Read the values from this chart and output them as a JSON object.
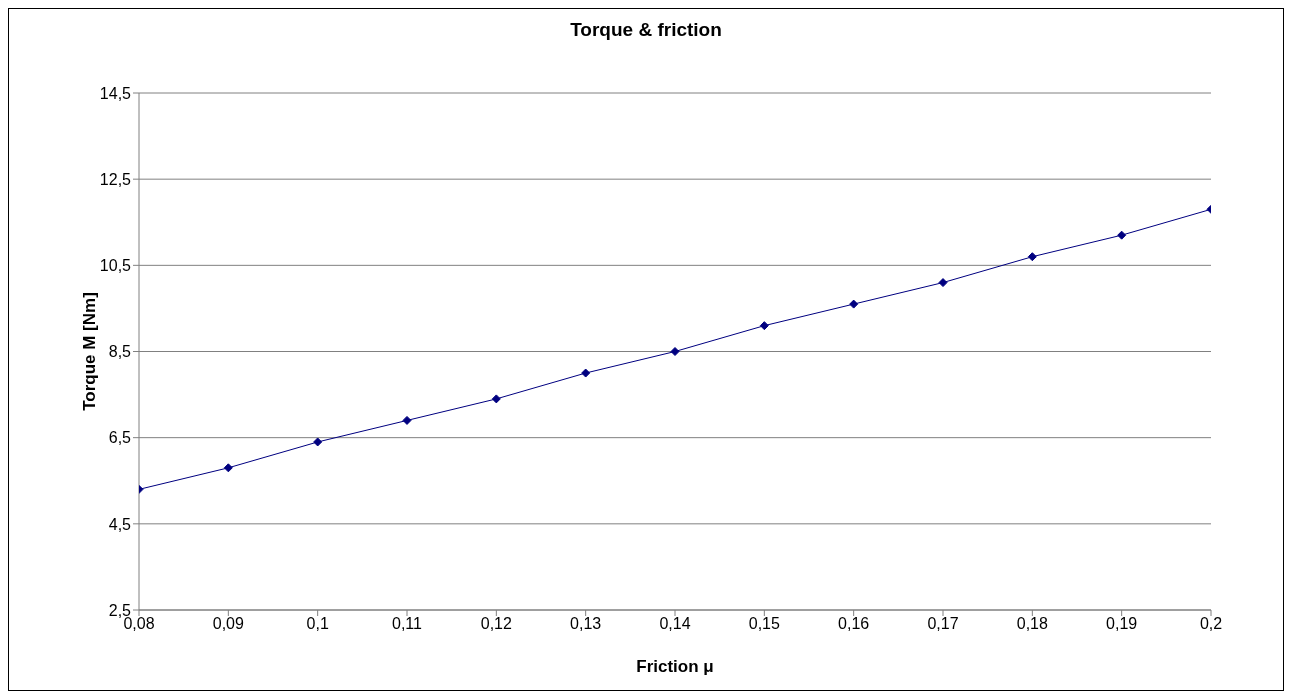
{
  "chart_data": {
    "type": "line",
    "title": "Torque & friction",
    "xlabel": "Friction μ",
    "ylabel": "Torque M [Nm]",
    "x": [
      0.08,
      0.09,
      0.1,
      0.11,
      0.12,
      0.13,
      0.14,
      0.15,
      0.16,
      0.17,
      0.18,
      0.19,
      0.2
    ],
    "series": [
      {
        "color": "#000080",
        "values": [
          5.3,
          5.8,
          6.4,
          6.9,
          7.4,
          8.0,
          8.5,
          9.1,
          9.6,
          10.1,
          10.7,
          11.2,
          11.8
        ]
      }
    ],
    "xlim": [
      0.08,
      0.2
    ],
    "xticks": [
      {
        "value": 0.08,
        "label": "0,08"
      },
      {
        "value": 0.09,
        "label": "0,09"
      },
      {
        "value": 0.1,
        "label": "0,1"
      },
      {
        "value": 0.11,
        "label": "0,11"
      },
      {
        "value": 0.12,
        "label": "0,12"
      },
      {
        "value": 0.13,
        "label": "0,13"
      },
      {
        "value": 0.14,
        "label": "0,14"
      },
      {
        "value": 0.15,
        "label": "0,15"
      },
      {
        "value": 0.16,
        "label": "0,16"
      },
      {
        "value": 0.17,
        "label": "0,17"
      },
      {
        "value": 0.18,
        "label": "0,18"
      },
      {
        "value": 0.19,
        "label": "0,19"
      },
      {
        "value": 0.2,
        "label": "0,2"
      }
    ],
    "ylim": [
      2.5,
      14.5
    ],
    "yticks": [
      {
        "value": 2.5,
        "label": "2,5"
      },
      {
        "value": 4.5,
        "label": "4,5"
      },
      {
        "value": 6.5,
        "label": "6,5"
      },
      {
        "value": 8.5,
        "label": "8,5"
      },
      {
        "value": 10.5,
        "label": "10,5"
      },
      {
        "value": 12.5,
        "label": "12,5"
      },
      {
        "value": 14.5,
        "label": "14,5"
      }
    ],
    "grid": "y",
    "legend": false,
    "marker": "diamond",
    "line_style": "solid"
  }
}
